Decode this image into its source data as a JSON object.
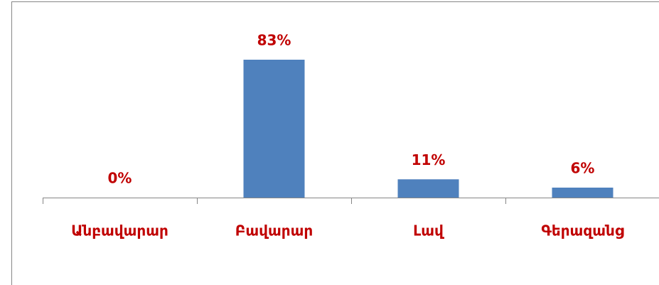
{
  "chart_data": {
    "type": "bar",
    "categories": [
      "Անբավարար",
      "Բավարար",
      "Լավ",
      "Գերազանց"
    ],
    "values": [
      0,
      83,
      11,
      6
    ],
    "value_labels": [
      "0%",
      "83%",
      "11%",
      "6%"
    ],
    "color": "#4f81bd"
  }
}
